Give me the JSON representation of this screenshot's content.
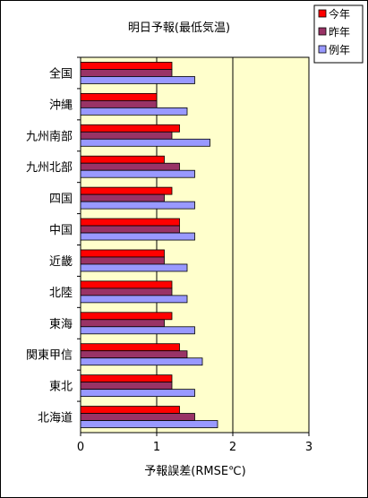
{
  "chart_data": {
    "type": "bar",
    "orientation": "horizontal",
    "title": "明日予報(最低気温)",
    "xlabel": "予報誤差(RMSE℃)",
    "ylabel": "",
    "xlim": [
      0,
      3
    ],
    "xticks": [
      "0",
      "1",
      "2",
      "3"
    ],
    "grid": true,
    "legend_position": "top-right",
    "plot_background": "#ffffcc",
    "categories": [
      "全国",
      "沖縄",
      "九州南部",
      "九州北部",
      "四国",
      "中国",
      "近畿",
      "北陸",
      "東海",
      "関東甲信",
      "東北",
      "北海道"
    ],
    "series": [
      {
        "name": "今年",
        "color": "#ff0000",
        "values": [
          1.2,
          1.0,
          1.3,
          1.1,
          1.2,
          1.3,
          1.1,
          1.2,
          1.2,
          1.3,
          1.2,
          1.3
        ]
      },
      {
        "name": "昨年",
        "color": "#993366",
        "values": [
          1.2,
          1.0,
          1.2,
          1.3,
          1.1,
          1.3,
          1.1,
          1.2,
          1.1,
          1.4,
          1.2,
          1.5
        ]
      },
      {
        "name": "例年",
        "color": "#9999ff",
        "values": [
          1.5,
          1.4,
          1.7,
          1.5,
          1.5,
          1.5,
          1.4,
          1.4,
          1.5,
          1.6,
          1.5,
          1.8
        ]
      }
    ]
  }
}
